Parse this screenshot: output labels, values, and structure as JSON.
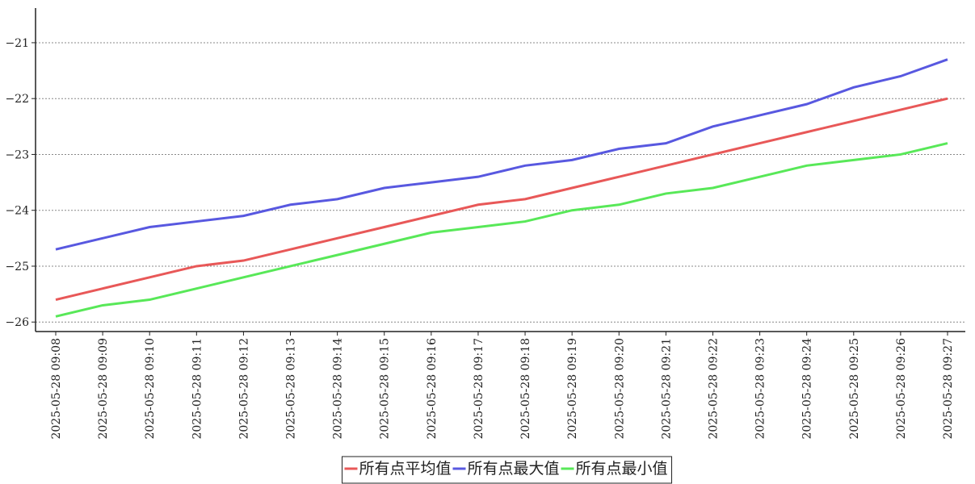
{
  "chart_data": {
    "type": "line",
    "categories": [
      "2025-05-28 09:08",
      "2025-05-28 09:09",
      "2025-05-28 09:10",
      "2025-05-28 09:11",
      "2025-05-28 09:12",
      "2025-05-28 09:13",
      "2025-05-28 09:14",
      "2025-05-28 09:15",
      "2025-05-28 09:16",
      "2025-05-28 09:17",
      "2025-05-28 09:18",
      "2025-05-28 09:19",
      "2025-05-28 09:20",
      "2025-05-28 09:21",
      "2025-05-28 09:22",
      "2025-05-28 09:23",
      "2025-05-28 09:24",
      "2025-05-28 09:25",
      "2025-05-28 09:26",
      "2025-05-28 09:27"
    ],
    "series": [
      {
        "name": "所有点平均值",
        "color": "#e85858",
        "values": [
          -25.6,
          -25.4,
          -25.2,
          -25.0,
          -24.9,
          -24.7,
          -24.5,
          -24.3,
          -24.1,
          -23.9,
          -23.8,
          -23.6,
          -23.4,
          -23.2,
          -23.0,
          -22.8,
          -22.6,
          -22.4,
          -22.2,
          -22.0
        ]
      },
      {
        "name": "所有点最大值",
        "color": "#5858e0",
        "values": [
          -24.7,
          -24.5,
          -24.3,
          -24.2,
          -24.1,
          -23.9,
          -23.8,
          -23.6,
          -23.5,
          -23.4,
          -23.2,
          -23.1,
          -22.9,
          -22.8,
          -22.5,
          -22.3,
          -22.1,
          -21.8,
          -21.6,
          -21.3
        ]
      },
      {
        "name": "所有点最小值",
        "color": "#58e858",
        "values": [
          -25.9,
          -25.7,
          -25.6,
          -25.4,
          -25.2,
          -25.0,
          -24.8,
          -24.6,
          -24.4,
          -24.3,
          -24.2,
          -24.0,
          -23.9,
          -23.7,
          -23.6,
          -23.4,
          -23.2,
          -23.1,
          -23.0,
          -22.8
        ]
      }
    ],
    "ylim": [
      -26.17,
      -20.38
    ],
    "yticks": [
      {
        "value": -26,
        "label": "−26"
      },
      {
        "value": -25,
        "label": "−25"
      },
      {
        "value": -24,
        "label": "−24"
      },
      {
        "value": -23,
        "label": "−23"
      },
      {
        "value": -22,
        "label": "−22"
      },
      {
        "value": -21,
        "label": "−21"
      }
    ],
    "grid": true,
    "legend": "bottom"
  }
}
